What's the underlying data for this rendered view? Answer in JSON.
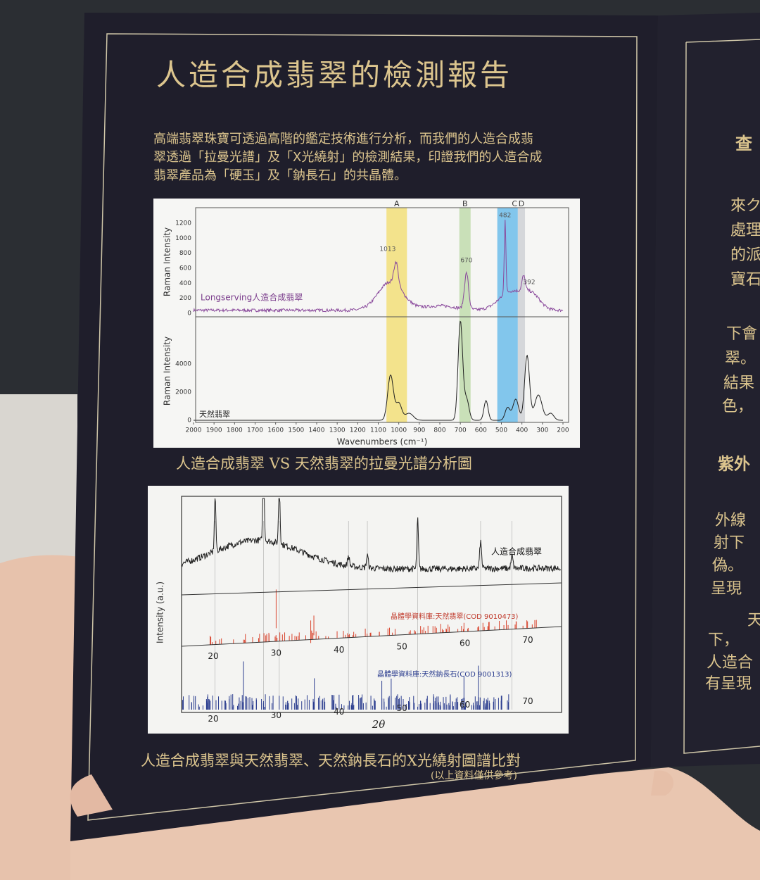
{
  "header": {
    "title": "人造合成翡翠的檢測報告"
  },
  "intro": [
    "高端翡翠珠寶可透過高階的鑑定技術進行分析，而我們的人造合成翡",
    "翠透過「拉曼光譜」及「X光繞射」的檢測結果，印證我們的人造合成",
    "翡翠產品為「硬玉」及「鈉長石」的共晶體。"
  ],
  "raman": {
    "y_label_top": "Raman Intensity",
    "yticks_top": [
      "1200",
      "1000",
      "800",
      "600",
      "400",
      "200",
      "0"
    ],
    "y_label_bottom": "Raman Intensity",
    "yticks_bottom": [
      "4000",
      "2000",
      "0"
    ],
    "xticks": [
      "2000",
      "1900",
      "1800",
      "1700",
      "1600",
      "1500",
      "1400",
      "1300",
      "1200",
      "1100",
      "1000",
      "900",
      "800",
      "700",
      "600",
      "500",
      "400",
      "300",
      "200"
    ],
    "x_label": "Wavenumbers (cm⁻¹)",
    "bands": [
      "A",
      "B",
      "C",
      "D"
    ],
    "peaks": [
      "1013",
      "670",
      "482",
      "392"
    ],
    "series_top": "Longserving人造合成翡翠",
    "series_bottom": "天然翡翠",
    "caption": "人造合成翡翠 VS 天然翡翠的拉曼光譜分析圖"
  },
  "xrd": {
    "y_label": "Intensity (a.u.)",
    "x_label": "2θ",
    "series": [
      "人造合成翡翠",
      "晶體學資料庫:天然翡翠(COD 9010473)",
      "晶體學資料庫:天然鈉長石(COD 9001313)"
    ],
    "xticks_middle": [
      "20",
      "30",
      "40",
      "50",
      "60",
      "70"
    ],
    "xticks_bottom": [
      "20",
      "30",
      "40",
      "50",
      "60",
      "70"
    ],
    "caption": "人造合成翡翠與天然翡翠、天然鈉長石的X光繞射圖譜比對",
    "note": "(以上資料僅供參考)"
  },
  "right_page": {
    "heading_1": "查",
    "lines_1": [
      "來ク",
      "處理",
      "的派",
      "寶石"
    ],
    "lines_2": [
      "下會",
      "翠。",
      "結果",
      "色，"
    ],
    "heading_2": "紫外",
    "lines_3": [
      "外線",
      "射下",
      "偽。",
      "呈現"
    ],
    "lines_4": [
      "天",
      "下，",
      "人造合",
      "有呈現"
    ]
  }
}
